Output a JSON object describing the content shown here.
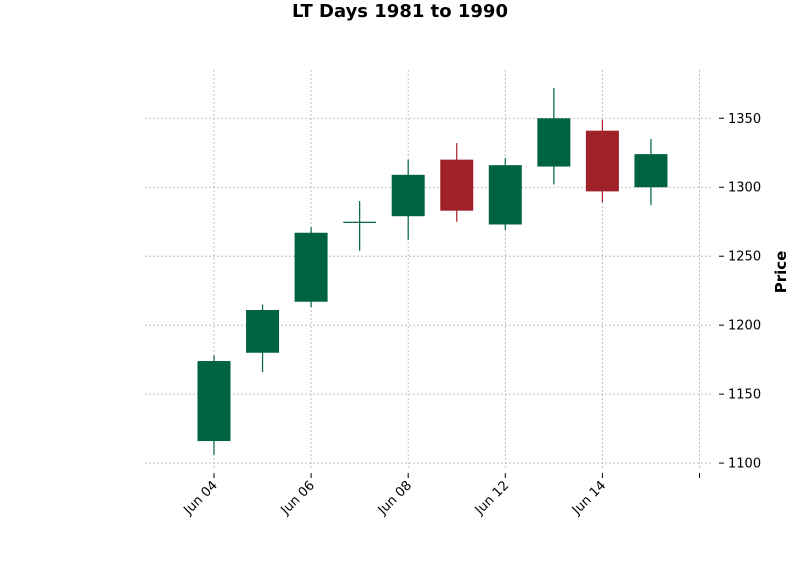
{
  "chart_data": {
    "type": "candlestick",
    "title": "LT Days 1981 to 1990",
    "ylabel": "Price",
    "xlabel": "",
    "ylim": [
      1095,
      1385
    ],
    "yticks": [
      1100,
      1150,
      1200,
      1250,
      1300,
      1350
    ],
    "xticks": [
      {
        "index": 0,
        "label": "Jun 04"
      },
      {
        "index": 2,
        "label": "Jun 06"
      },
      {
        "index": 4,
        "label": "Jun 08"
      },
      {
        "index": 6,
        "label": "Jun 12"
      },
      {
        "index": 8,
        "label": "Jun 14"
      },
      {
        "index": 10,
        "label": ""
      }
    ],
    "grid": true,
    "up_color": "#006340",
    "down_color": "#a02128",
    "candles": [
      {
        "open": 1116,
        "high": 1178,
        "low": 1106,
        "close": 1174
      },
      {
        "open": 1180,
        "high": 1215,
        "low": 1166,
        "close": 1211
      },
      {
        "open": 1217,
        "high": 1271,
        "low": 1213,
        "close": 1267
      },
      {
        "open": 1275,
        "high": 1290,
        "low": 1254,
        "close": 1275
      },
      {
        "open": 1279,
        "high": 1320,
        "low": 1262,
        "close": 1309
      },
      {
        "open": 1320,
        "high": 1332,
        "low": 1275,
        "close": 1283
      },
      {
        "open": 1273,
        "high": 1321,
        "low": 1269,
        "close": 1316
      },
      {
        "open": 1315,
        "high": 1372,
        "low": 1302,
        "close": 1350
      },
      {
        "open": 1341,
        "high": 1349,
        "low": 1289,
        "close": 1297
      },
      {
        "open": 1300,
        "high": 1335,
        "low": 1287,
        "close": 1324
      }
    ]
  }
}
